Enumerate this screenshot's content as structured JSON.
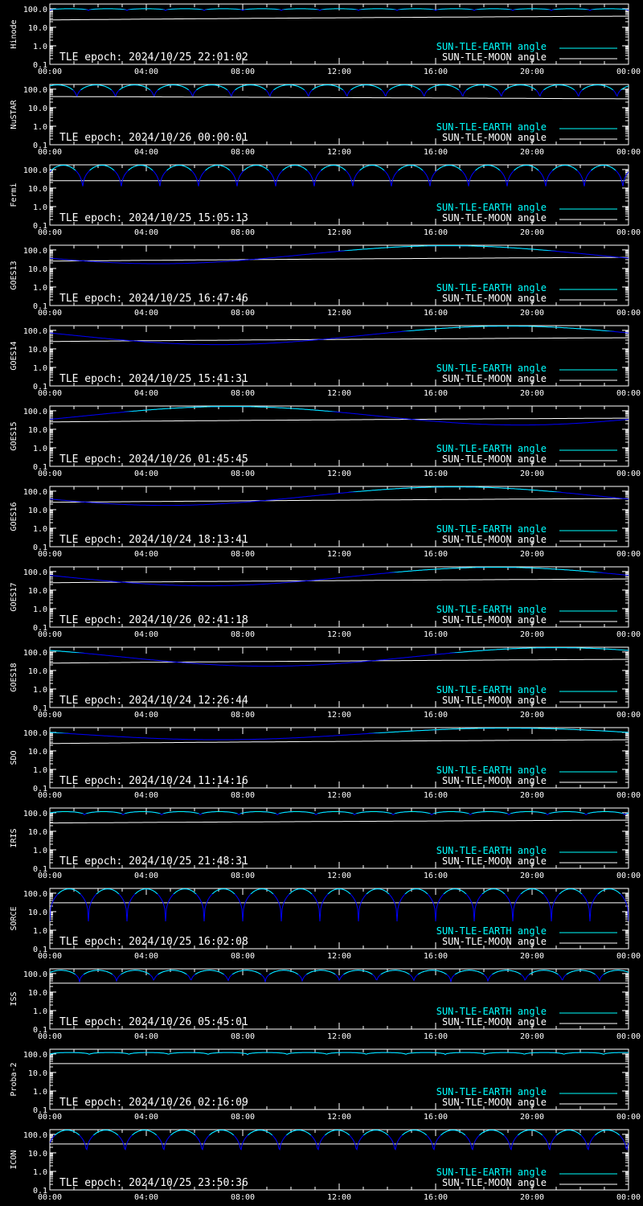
{
  "legend": {
    "earth_label": "SUN-TLE-EARTH angle",
    "moon_label": "SUN-TLE-MOON angle"
  },
  "colors": {
    "background": "#000000",
    "axes": "#ffffff",
    "earth_above": "#00ffff",
    "earth_below": "#0000ff",
    "moon": "#ffffff"
  },
  "x_ticks": [
    "00:00",
    "04:00",
    "08:00",
    "12:00",
    "16:00",
    "20:00",
    "00:00"
  ],
  "y_ticks": [
    "100.0",
    "10.0",
    "1.0",
    "0.1"
  ],
  "chart_data": [
    {
      "type": "line",
      "satellite": "Hinode",
      "tle_epoch": "TLE epoch: 2024/10/25 22:01:02",
      "x_range_hours": [
        0,
        24
      ],
      "ylim": [
        0.1,
        180
      ],
      "y_scale": "log",
      "earth": {
        "kind": "orbit",
        "period_h": 1.6,
        "phase": 0.0,
        "min": 80,
        "max": 100
      },
      "moon": {
        "kind": "linear",
        "start": 25,
        "end": 40
      }
    },
    {
      "type": "line",
      "satellite": "NuSTAR",
      "tle_epoch": "TLE epoch: 2024/10/26 00:00:01",
      "x_range_hours": [
        0,
        24
      ],
      "ylim": [
        0.1,
        180
      ],
      "y_scale": "log",
      "earth": {
        "kind": "orbit",
        "period_h": 1.6,
        "phase": 0.3,
        "min": 25,
        "max": 170
      },
      "moon": {
        "kind": "linear",
        "start": 40,
        "end": 30
      }
    },
    {
      "type": "line",
      "satellite": "Fermi",
      "tle_epoch": "TLE epoch: 2024/10/25 15:05:13",
      "x_range_hours": [
        0,
        24
      ],
      "ylim": [
        0.1,
        180
      ],
      "y_scale": "log",
      "earth": {
        "kind": "orbit",
        "period_h": 1.6,
        "phase": 0.15,
        "min": 6,
        "max": 170
      },
      "moon": {
        "kind": "linear",
        "start": 25,
        "end": 25
      }
    },
    {
      "type": "line",
      "satellite": "GOES13",
      "tle_epoch": "TLE epoch: 2024/10/25 16:47:46",
      "x_range_hours": [
        0,
        24
      ],
      "ylim": [
        0.1,
        180
      ],
      "y_scale": "log",
      "earth": {
        "kind": "daily",
        "min": 18,
        "min_h": 4.5,
        "max": 170,
        "max_h": 16.5
      },
      "moon": {
        "kind": "linear",
        "start": 25,
        "end": 40
      }
    },
    {
      "type": "line",
      "satellite": "GOES14",
      "tle_epoch": "TLE epoch: 2024/10/25 15:41:31",
      "x_range_hours": [
        0,
        24
      ],
      "ylim": [
        0.1,
        180
      ],
      "y_scale": "log",
      "earth": {
        "kind": "daily",
        "min": 17,
        "min_h": 7.0,
        "max": 170,
        "max_h": 19.0
      },
      "moon": {
        "kind": "linear",
        "start": 25,
        "end": 40
      }
    },
    {
      "type": "line",
      "satellite": "GOES15",
      "tle_epoch": "TLE epoch: 2024/10/26 01:45:45",
      "x_range_hours": [
        0,
        24
      ],
      "ylim": [
        0.1,
        180
      ],
      "y_scale": "log",
      "earth": {
        "kind": "daily",
        "min": 17,
        "min_h": 19.5,
        "max": 170,
        "max_h": 7.5
      },
      "moon": {
        "kind": "linear",
        "start": 25,
        "end": 40
      }
    },
    {
      "type": "line",
      "satellite": "GOES16",
      "tle_epoch": "TLE epoch: 2024/10/24 18:13:41",
      "x_range_hours": [
        0,
        24
      ],
      "ylim": [
        0.1,
        180
      ],
      "y_scale": "log",
      "earth": {
        "kind": "daily",
        "min": 17,
        "min_h": 4.8,
        "max": 170,
        "max_h": 16.8
      },
      "moon": {
        "kind": "linear",
        "start": 25,
        "end": 40
      }
    },
    {
      "type": "line",
      "satellite": "GOES17",
      "tle_epoch": "TLE epoch: 2024/10/26 02:41:18",
      "x_range_hours": [
        0,
        24
      ],
      "ylim": [
        0.1,
        180
      ],
      "y_scale": "log",
      "earth": {
        "kind": "daily",
        "min": 17,
        "min_h": 6.5,
        "max": 170,
        "max_h": 18.5
      },
      "moon": {
        "kind": "linear",
        "start": 25,
        "end": 40
      }
    },
    {
      "type": "line",
      "satellite": "GOES18",
      "tle_epoch": "TLE epoch: 2024/10/24 12:26:44",
      "x_range_hours": [
        0,
        24
      ],
      "ylim": [
        0.1,
        180
      ],
      "y_scale": "log",
      "earth": {
        "kind": "daily",
        "min": 17,
        "min_h": 9.0,
        "max": 170,
        "max_h": 21.0
      },
      "moon": {
        "kind": "linear",
        "start": 25,
        "end": 40
      }
    },
    {
      "type": "line",
      "satellite": "SDO",
      "tle_epoch": "TLE epoch: 2024/10/24 11:14:16",
      "x_range_hours": [
        0,
        24
      ],
      "ylim": [
        0.1,
        180
      ],
      "y_scale": "log",
      "earth": {
        "kind": "daily",
        "min": 40,
        "min_h": 7.0,
        "max": 170,
        "max_h": 19.0
      },
      "moon": {
        "kind": "linear",
        "start": 25,
        "end": 40
      }
    },
    {
      "type": "line",
      "satellite": "IRIS",
      "tle_epoch": "TLE epoch: 2024/10/25 21:48:31",
      "x_range_hours": [
        0,
        24
      ],
      "ylim": [
        0.1,
        180
      ],
      "y_scale": "log",
      "earth": {
        "kind": "orbit",
        "period_h": 1.6,
        "phase": 0.1,
        "min": 70,
        "max": 115
      },
      "moon": {
        "kind": "linear",
        "start": 28,
        "end": 40
      }
    },
    {
      "type": "line",
      "satellite": "SORCE",
      "tle_epoch": "TLE epoch: 2024/10/25 16:02:08",
      "x_range_hours": [
        0,
        24
      ],
      "ylim": [
        0.1,
        180
      ],
      "y_scale": "log",
      "earth": {
        "kind": "orbit",
        "period_h": 1.6,
        "phase": 0.0,
        "min": 3,
        "max": 170
      },
      "moon": {
        "kind": "linear",
        "start": 30,
        "end": 30
      }
    },
    {
      "type": "line",
      "satellite": "ISS",
      "tle_epoch": "TLE epoch: 2024/10/26 05:45:01",
      "x_range_hours": [
        0,
        24
      ],
      "ylim": [
        0.1,
        180
      ],
      "y_scale": "log",
      "earth": {
        "kind": "orbit",
        "period_h": 1.54,
        "phase": 0.2,
        "min": 28,
        "max": 150
      },
      "moon": {
        "kind": "linear",
        "start": 30,
        "end": 30
      }
    },
    {
      "type": "line",
      "satellite": "Proba-2",
      "tle_epoch": "TLE epoch: 2024/10/26 02:16:09",
      "x_range_hours": [
        0,
        24
      ],
      "ylim": [
        0.1,
        180
      ],
      "y_scale": "log",
      "earth": {
        "kind": "orbit",
        "period_h": 1.64,
        "phase": 0.0,
        "min": 90,
        "max": 120
      },
      "moon": {
        "kind": "linear",
        "start": 30,
        "end": 30
      }
    },
    {
      "type": "line",
      "satellite": "ICON",
      "tle_epoch": "TLE epoch: 2024/10/25 23:50:36",
      "x_range_hours": [
        0,
        24
      ],
      "ylim": [
        0.1,
        180
      ],
      "y_scale": "log",
      "earth": {
        "kind": "orbit",
        "period_h": 1.6,
        "phase": 0.05,
        "min": 6,
        "max": 170
      },
      "moon": {
        "kind": "linear",
        "start": 30,
        "end": 30
      }
    }
  ]
}
